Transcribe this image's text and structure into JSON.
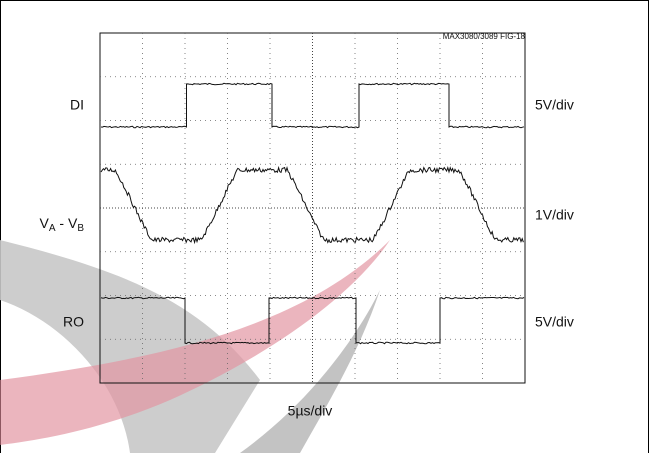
{
  "figure_id": "MAX3080/3089 FIG-18",
  "traces": [
    {
      "label": "DI",
      "scale": "5V/div"
    },
    {
      "label": {
        "v1": "V",
        "sub1": "A",
        "sep": " - ",
        "v2": "V",
        "sub2": "B"
      },
      "scale": "1V/div"
    },
    {
      "label": "RO",
      "scale": "5V/div"
    }
  ],
  "timebase": "5µs/div"
}
